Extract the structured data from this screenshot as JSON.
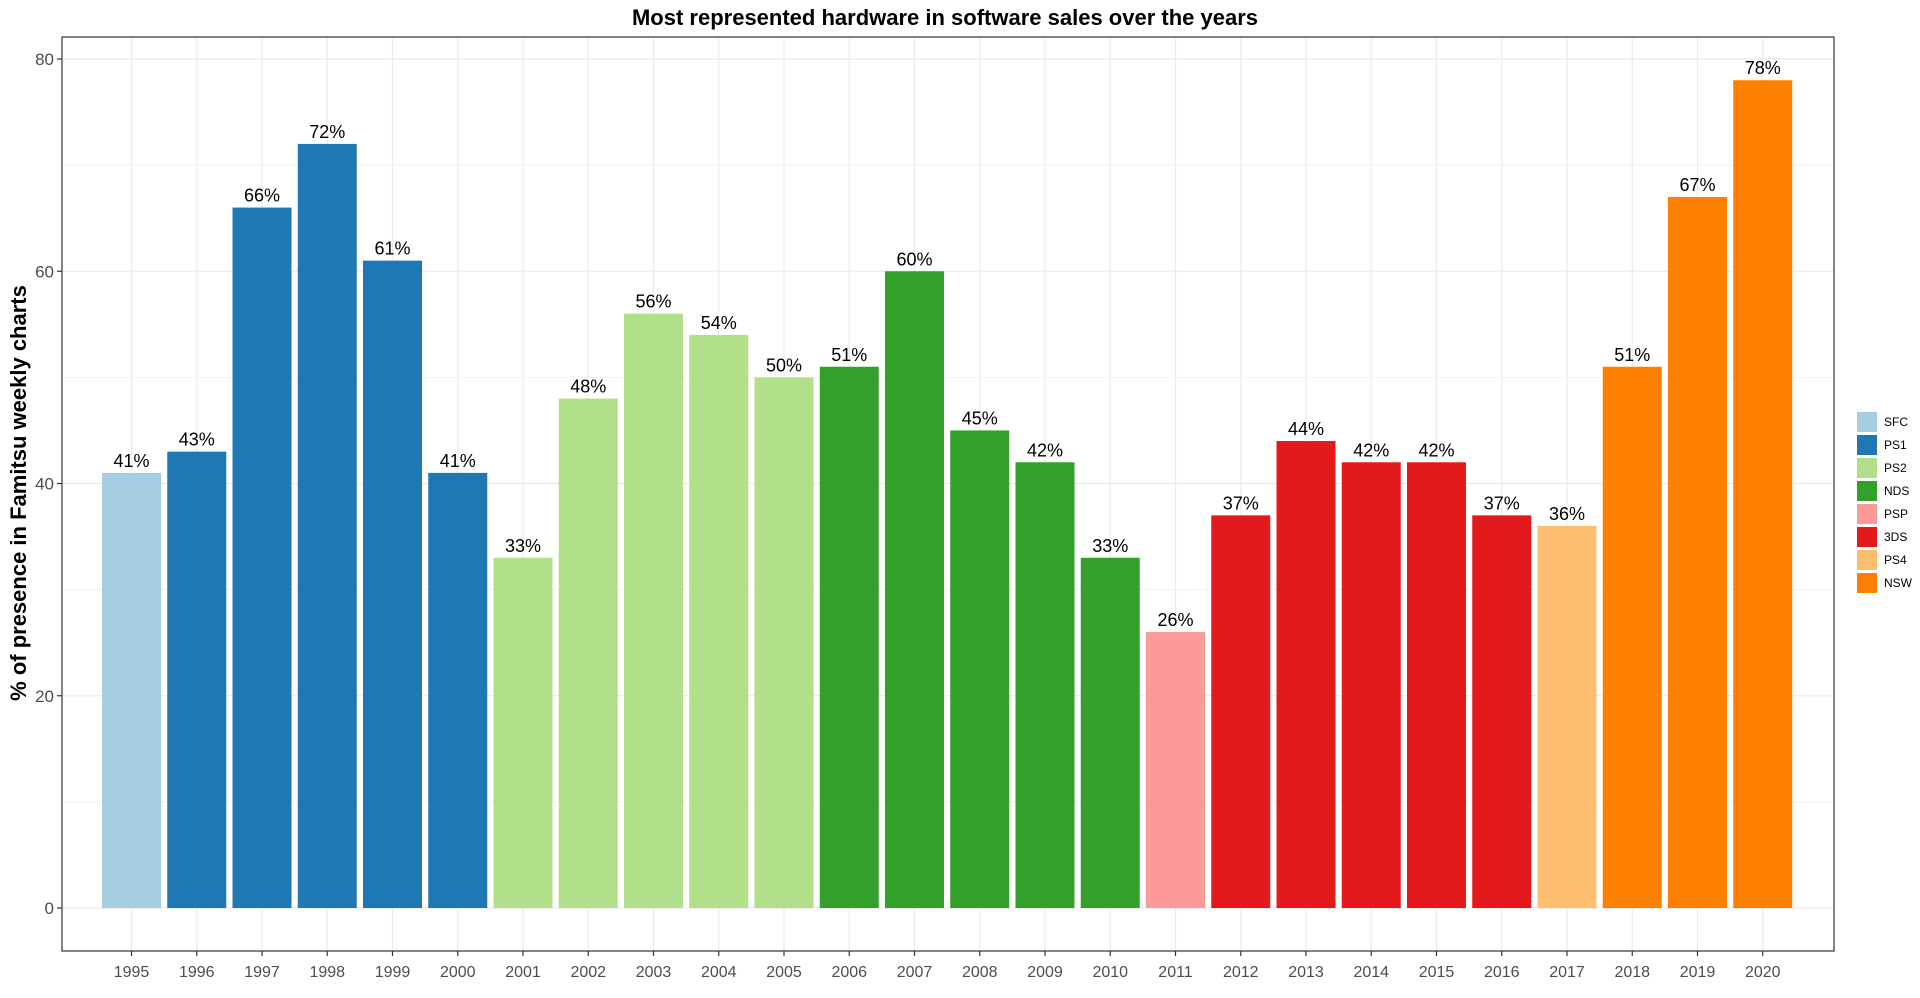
{
  "chart_data": {
    "type": "bar",
    "title": "Most represented hardware in software sales over the years",
    "xlabel": "",
    "ylabel": "% of presence in Famitsu weekly charts",
    "ylim": [
      0,
      80
    ],
    "yticks": [
      0,
      20,
      40,
      60,
      80
    ],
    "grid": true,
    "legend_position": "right",
    "legend": [
      {
        "name": "SFC",
        "color": "#A6CEE3"
      },
      {
        "name": "PS1",
        "color": "#1F78B4"
      },
      {
        "name": "PS2",
        "color": "#B2DF8A"
      },
      {
        "name": "NDS",
        "color": "#33A02C"
      },
      {
        "name": "PSP",
        "color": "#FB9A99"
      },
      {
        "name": "3DS",
        "color": "#E31A1C"
      },
      {
        "name": "PS4",
        "color": "#FDBF6F"
      },
      {
        "name": "NSW",
        "color": "#FF7F00"
      }
    ],
    "categories": [
      "1995",
      "1996",
      "1997",
      "1998",
      "1999",
      "2000",
      "2001",
      "2002",
      "2003",
      "2004",
      "2005",
      "2006",
      "2007",
      "2008",
      "2009",
      "2010",
      "2011",
      "2012",
      "2013",
      "2014",
      "2015",
      "2016",
      "2017",
      "2018",
      "2019",
      "2020"
    ],
    "values": [
      41,
      43,
      66,
      72,
      61,
      41,
      33,
      48,
      56,
      54,
      50,
      51,
      60,
      45,
      42,
      33,
      26,
      37,
      44,
      42,
      42,
      37,
      36,
      51,
      67,
      78
    ],
    "labels": [
      "41%",
      "43%",
      "66%",
      "72%",
      "61%",
      "41%",
      "33%",
      "48%",
      "56%",
      "54%",
      "50%",
      "51%",
      "60%",
      "45%",
      "42%",
      "33%",
      "26%",
      "37%",
      "44%",
      "42%",
      "42%",
      "37%",
      "36%",
      "51%",
      "67%",
      "78%"
    ],
    "hardware": [
      "SFC",
      "PS1",
      "PS1",
      "PS1",
      "PS1",
      "PS1",
      "PS2",
      "PS2",
      "PS2",
      "PS2",
      "PS2",
      "NDS",
      "NDS",
      "NDS",
      "NDS",
      "NDS",
      "PSP",
      "3DS",
      "3DS",
      "3DS",
      "3DS",
      "3DS",
      "PS4",
      "NSW",
      "NSW",
      "NSW"
    ]
  }
}
